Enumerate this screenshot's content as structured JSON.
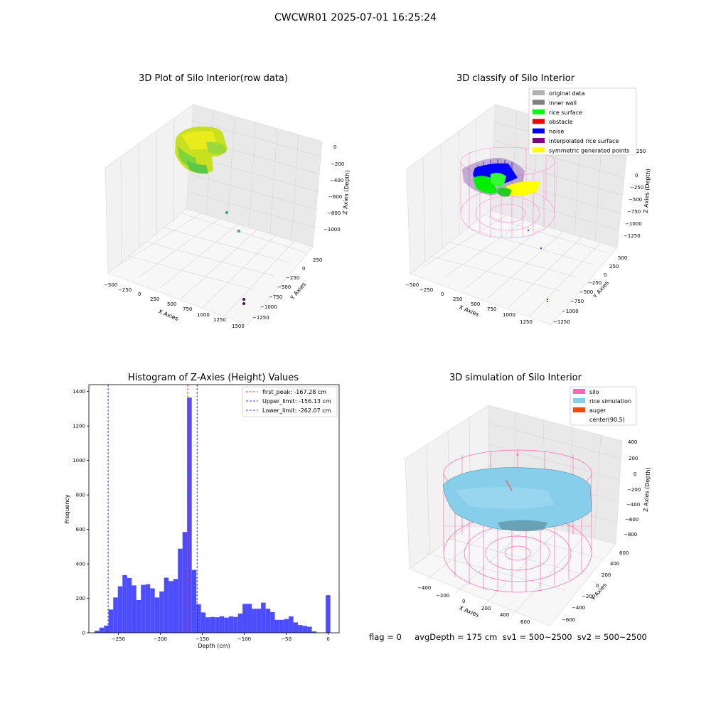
{
  "suptitle": "CWCWR01 2025-07-01 16:25:24",
  "panels": {
    "raw": {
      "title": "3D Plot of Silo Interior(row data)",
      "xlabel": "X Axies",
      "ylabel": "Y Axies",
      "zlabel": "Z Axies (Depth)",
      "xticks": [
        "−500",
        "−250",
        "0",
        "250",
        "500",
        "750",
        "1000",
        "1250",
        "1500"
      ],
      "yticks": [
        "250",
        "0",
        "−250",
        "−500",
        "−750",
        "−1000",
        "−1250"
      ],
      "zticks": [
        "0",
        "−200",
        "−400",
        "−600",
        "−800",
        "−1000"
      ]
    },
    "classify": {
      "title": "3D classify of Silo Interior",
      "xlabel": "X Axies",
      "ylabel": "Y Axies",
      "zlabel": "Z Axies (Depth)",
      "xticks": [
        "−500",
        "−250",
        "0",
        "250",
        "500",
        "750",
        "1000",
        "1250"
      ],
      "yticks": [
        "500",
        "250",
        "0",
        "−250",
        "−500",
        "−750",
        "−1000",
        "−1250"
      ],
      "zticks": [
        "250",
        "0",
        "−250",
        "−500",
        "−750",
        "−1000",
        "−1250"
      ],
      "legend": [
        {
          "label": "original data",
          "color": "#b0b0b0"
        },
        {
          "label": "inner wall",
          "color": "#808080"
        },
        {
          "label": "rice surface",
          "color": "#00ff00"
        },
        {
          "label": "obstacle",
          "color": "#ff0000"
        },
        {
          "label": "noise",
          "color": "#0000ff"
        },
        {
          "label": "interpolated rice surface",
          "color": "#800080"
        },
        {
          "label": "symmetric generated points",
          "color": "#ffff00"
        }
      ]
    },
    "simulation": {
      "title": "3D simulation of Silo Interior",
      "xlabel": "X Axies",
      "ylabel": "Y Axies",
      "zlabel": "Z Axies (Depth)",
      "xticks": [
        "−400",
        "−200",
        "0",
        "200",
        "400",
        "600"
      ],
      "yticks": [
        "600",
        "400",
        "200",
        "0",
        "−200",
        "−400",
        "−600"
      ],
      "zticks": [
        "400",
        "200",
        "0",
        "−200",
        "−400",
        "−600",
        "−800"
      ],
      "legend": [
        {
          "label": "silo",
          "color": "#ff69b4"
        },
        {
          "label": "rice simulation",
          "color": "#87ceeb"
        },
        {
          "label": "auger",
          "color": "#ff4500"
        },
        {
          "label": "center(90,5)",
          "color": ""
        }
      ]
    }
  },
  "footer": "flag = 0     avgDepth = 175 cm  sv1 = 500~2500  sv2 = 500~2500",
  "chart_data": {
    "type": "bar",
    "title": "Histogram of Z-Axies (Height) Values",
    "xlabel": "Depth (cm)",
    "ylabel": "Frequency",
    "xlim": [
      -285,
      13
    ],
    "ylim": [
      0,
      1440
    ],
    "xticks": [
      -250,
      -200,
      -150,
      -100,
      -50,
      0
    ],
    "yticks": [
      0,
      200,
      400,
      600,
      800,
      1000,
      1200,
      1400
    ],
    "bar_color": "#4d4dff",
    "bin_width": 5.5,
    "bins": [
      {
        "x": -278,
        "value": 12
      },
      {
        "x": -272.5,
        "value": 30
      },
      {
        "x": -267,
        "value": 42
      },
      {
        "x": -261.5,
        "value": 135
      },
      {
        "x": -256,
        "value": 205
      },
      {
        "x": -250.5,
        "value": 270
      },
      {
        "x": -245,
        "value": 335
      },
      {
        "x": -239.5,
        "value": 318
      },
      {
        "x": -234,
        "value": 275
      },
      {
        "x": -228.5,
        "value": 190
      },
      {
        "x": -223,
        "value": 278
      },
      {
        "x": -217.5,
        "value": 282
      },
      {
        "x": -212,
        "value": 258
      },
      {
        "x": -206.5,
        "value": 205
      },
      {
        "x": -201,
        "value": 240
      },
      {
        "x": -195.5,
        "value": 320
      },
      {
        "x": -190,
        "value": 300
      },
      {
        "x": -184.5,
        "value": 312
      },
      {
        "x": -179,
        "value": 488
      },
      {
        "x": -173.5,
        "value": 585
      },
      {
        "x": -168,
        "value": 1365
      },
      {
        "x": -162.5,
        "value": 365
      },
      {
        "x": -157,
        "value": 165
      },
      {
        "x": -151.5,
        "value": 118
      },
      {
        "x": -146,
        "value": 90
      },
      {
        "x": -140.5,
        "value": 92
      },
      {
        "x": -135,
        "value": 90
      },
      {
        "x": -129.5,
        "value": 96
      },
      {
        "x": -124,
        "value": 88
      },
      {
        "x": -118.5,
        "value": 95
      },
      {
        "x": -113,
        "value": 92
      },
      {
        "x": -107.5,
        "value": 112
      },
      {
        "x": -102,
        "value": 168
      },
      {
        "x": -96.5,
        "value": 168
      },
      {
        "x": -91,
        "value": 140
      },
      {
        "x": -85.5,
        "value": 140
      },
      {
        "x": -80,
        "value": 175
      },
      {
        "x": -74.5,
        "value": 140
      },
      {
        "x": -69,
        "value": 120
      },
      {
        "x": -63.5,
        "value": 75
      },
      {
        "x": -58,
        "value": 75
      },
      {
        "x": -52.5,
        "value": 80
      },
      {
        "x": -47,
        "value": 95
      },
      {
        "x": -41.5,
        "value": 60
      },
      {
        "x": -36,
        "value": 45
      },
      {
        "x": -30.5,
        "value": 40
      },
      {
        "x": -25,
        "value": 35
      },
      {
        "x": -19.5,
        "value": 8
      },
      {
        "x": -3,
        "value": 218
      }
    ],
    "vlines": [
      {
        "x": -167.28,
        "color": "#ff0000",
        "label": "first_peak: -167.28 cm"
      },
      {
        "x": -156.13,
        "color": "#0000ff",
        "label": "Upper_limit: -156.13 cm"
      },
      {
        "x": -262.07,
        "color": "#0000ff",
        "label": "Lower_limit: -262.07 cm"
      }
    ],
    "legend_position": "top-right"
  }
}
